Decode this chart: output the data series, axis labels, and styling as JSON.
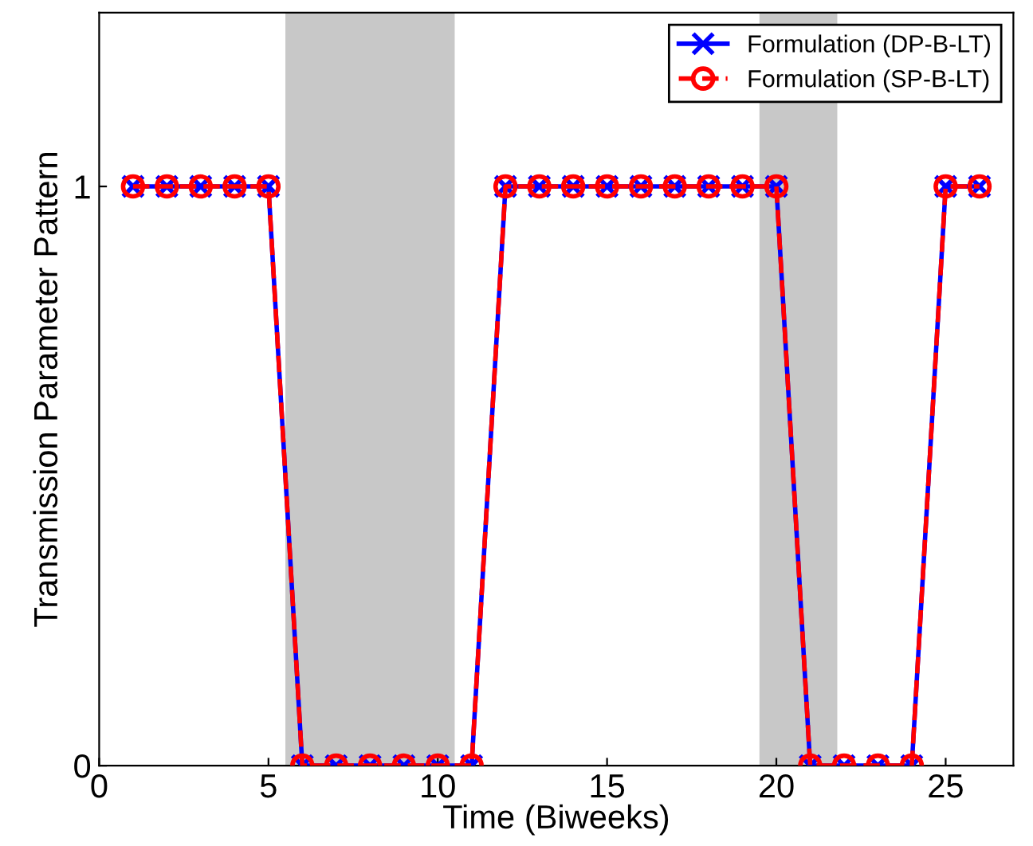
{
  "chart_data": {
    "type": "line",
    "xlabel": "Time (Biweeks)",
    "ylabel": "Transmission Parameter Pattern",
    "x": [
      1,
      2,
      3,
      4,
      5,
      6,
      7,
      8,
      9,
      10,
      11,
      12,
      13,
      14,
      15,
      16,
      17,
      18,
      19,
      20,
      21,
      22,
      23,
      24,
      25,
      26
    ],
    "series": [
      {
        "name": "Formulation (DP-B-LT)",
        "color": "#0000ff",
        "marker": "cross",
        "line_style": "solid",
        "values": [
          1,
          1,
          1,
          1,
          1,
          0,
          0,
          0,
          0,
          0,
          0,
          1,
          1,
          1,
          1,
          1,
          1,
          1,
          1,
          1,
          0,
          0,
          0,
          0,
          1,
          1
        ]
      },
      {
        "name": "Formulation (SP-B-LT)",
        "color": "#ff0000",
        "marker": "circle",
        "line_style": "dashed",
        "values": [
          1,
          1,
          1,
          1,
          1,
          0,
          0,
          0,
          0,
          0,
          0,
          1,
          1,
          1,
          1,
          1,
          1,
          1,
          1,
          1,
          0,
          0,
          0,
          0,
          1,
          1
        ]
      }
    ],
    "bands": [
      {
        "axis": "x",
        "from": 5.5,
        "to": 10.5,
        "color": "#c8c8c8"
      },
      {
        "axis": "x",
        "from": 19.5,
        "to": 21.8,
        "color": "#c8c8c8"
      }
    ],
    "xlim": [
      0,
      27
    ],
    "xticks": [
      0,
      5,
      10,
      15,
      20,
      25
    ],
    "ylim": [
      0,
      1.3
    ],
    "yticks": [
      0,
      1
    ],
    "grid": false,
    "legend": "top right"
  }
}
